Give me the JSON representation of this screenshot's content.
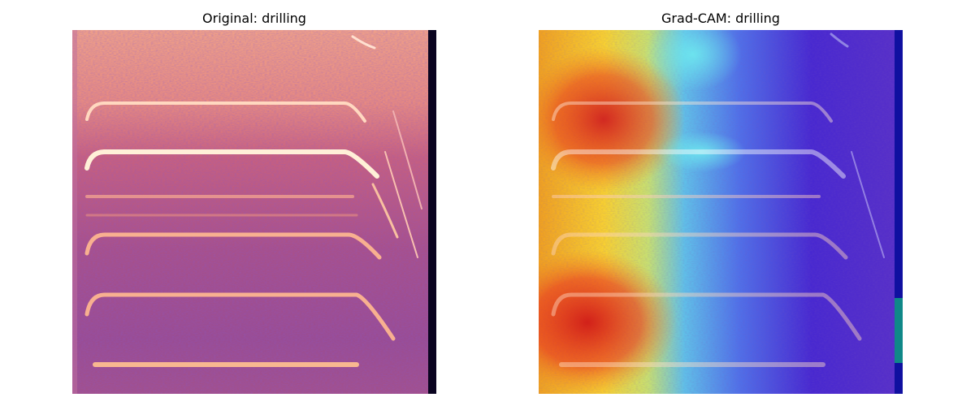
{
  "figure": {
    "panels": [
      {
        "title": "Original: drilling"
      },
      {
        "title": "Grad-CAM: drilling"
      }
    ]
  }
}
